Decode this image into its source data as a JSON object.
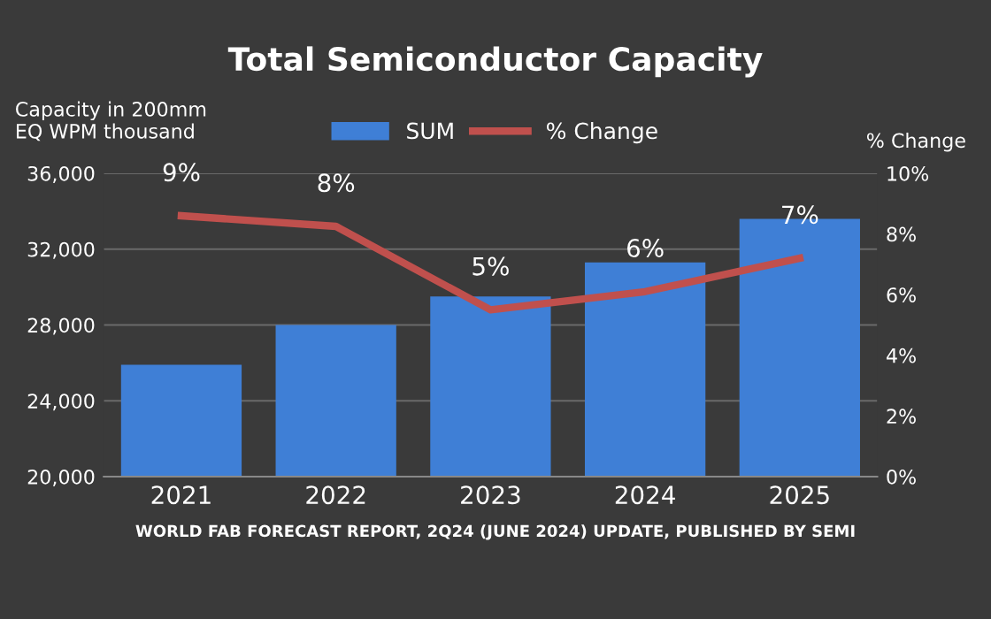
{
  "chart_data": {
    "type": "bar",
    "title": "Total Semiconductor Capacity",
    "ylabel": "Capacity in 200mm\nEQ WPM thousand",
    "y2label": "% Change",
    "categories": [
      "2021",
      "2022",
      "2023",
      "2024",
      "2025"
    ],
    "series": [
      {
        "name": "SUM",
        "color": "#3f7fd6",
        "values": [
          25900,
          28000,
          29500,
          31300,
          33600
        ]
      },
      {
        "name": "% Change",
        "type": "line",
        "axis": "y2",
        "color": "#c0504d",
        "values": [
          8.6,
          8.25,
          5.5,
          6.1,
          7.2
        ],
        "value_labels": [
          "9%",
          "8%",
          "5%",
          "6%",
          "7%"
        ],
        "marker": "none",
        "line_style": "solid"
      }
    ],
    "ylim": [
      20000,
      36000
    ],
    "yticks": [
      {
        "value": 20000,
        "label": "20,000"
      },
      {
        "value": 24000,
        "label": "24,000"
      },
      {
        "value": 28000,
        "label": "28,000"
      },
      {
        "value": 32000,
        "label": "32,000"
      },
      {
        "value": 36000,
        "label": "36,000"
      }
    ],
    "y2lim": [
      0,
      10
    ],
    "y2ticks": [
      {
        "value": 0,
        "label": "0%"
      },
      {
        "value": 2,
        "label": "2%"
      },
      {
        "value": 4,
        "label": "4%"
      },
      {
        "value": 6,
        "label": "6%"
      },
      {
        "value": 8,
        "label": "8%"
      },
      {
        "value": 10,
        "label": "10%"
      }
    ],
    "grid": "y",
    "legend": "top",
    "annotations": [
      "WORLD FAB FORECAST REPORT, 2Q24 (JUNE 2024) UPDATE, PUBLISHED BY SEMI"
    ]
  }
}
